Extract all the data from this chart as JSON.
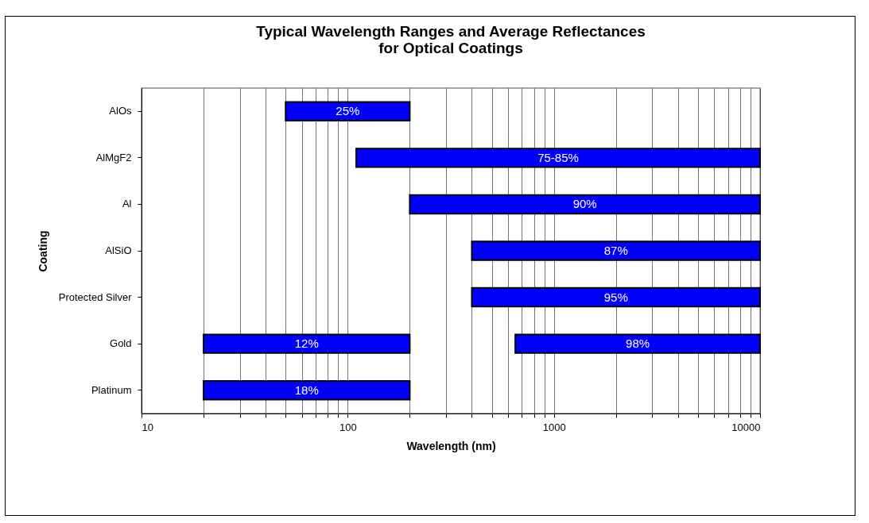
{
  "chart_data": {
    "type": "bar",
    "orientation": "horizontal",
    "title": "Typical Wavelength Ranges and Average Reflectances\nfor Optical Coatings",
    "xlabel": "Wavelength (nm)",
    "ylabel": "Coating",
    "categories": [
      "AlOs",
      "AlMgF2",
      "Al",
      "AlSiO",
      "Protected Silver",
      "Gold",
      "Platinum"
    ],
    "series": [
      {
        "color": "#0000ff",
        "base": [
          50,
          110,
          200,
          400,
          400,
          20,
          20
        ],
        "values": [
          150,
          9890,
          9800,
          9600,
          9600,
          180,
          180
        ]
      },
      {
        "color": "#0000ff",
        "base": [
          null,
          null,
          null,
          null,
          null,
          650,
          null
        ],
        "values": [
          null,
          null,
          null,
          null,
          null,
          9350,
          null
        ]
      }
    ],
    "annotations": [
      "25%",
      "75-85%",
      "90%",
      "87%",
      "95%",
      "12%",
      "18%",
      "98%"
    ],
    "log": "x",
    "xlim": [
      10,
      10000
    ],
    "xticks": [
      10,
      {
        "value": 20,
        "label": null
      },
      {
        "value": 30,
        "label": null
      },
      {
        "value": 40,
        "label": null
      },
      {
        "value": 50,
        "label": null
      },
      {
        "value": 60,
        "label": null
      },
      {
        "value": 70,
        "label": null
      },
      {
        "value": 80,
        "label": null
      },
      {
        "value": 90,
        "label": null
      },
      100,
      {
        "value": 200,
        "label": null
      },
      {
        "value": 300,
        "label": null
      },
      {
        "value": 400,
        "label": null
      },
      {
        "value": 500,
        "label": null
      },
      {
        "value": 600,
        "label": null
      },
      {
        "value": 700,
        "label": null
      },
      {
        "value": 800,
        "label": null
      },
      {
        "value": 900,
        "label": null
      },
      1000,
      {
        "value": 2000,
        "label": null
      },
      {
        "value": 3000,
        "label": null
      },
      {
        "value": 4000,
        "label": null
      },
      {
        "value": 5000,
        "label": null
      },
      {
        "value": 6000,
        "label": null
      },
      {
        "value": 7000,
        "label": null
      },
      {
        "value": 8000,
        "label": null
      },
      {
        "value": 9000,
        "label": null
      },
      10000
    ],
    "grid": "x"
  }
}
